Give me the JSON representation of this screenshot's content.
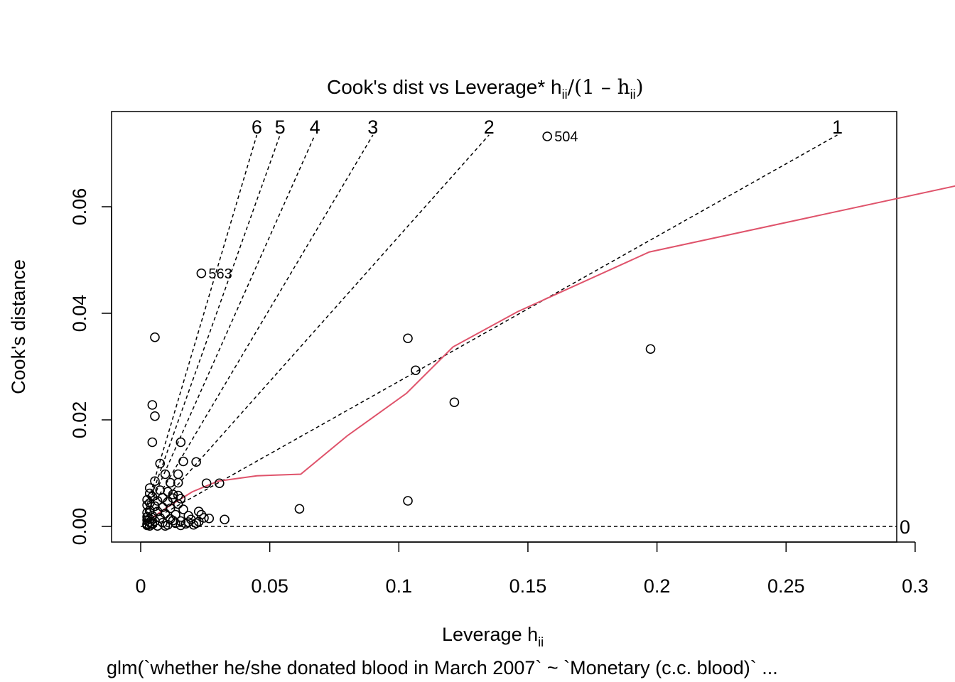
{
  "chart_data": {
    "type": "scatter",
    "title": "Cook's dist vs Leverage* h",
    "title_sub1": "ii",
    "title_mid": "/(1 – h",
    "title_sub2": "ii",
    "title_end": ")",
    "xlabel": "Leverage  h",
    "xlabel_sub": "ii",
    "ylabel": "Cook's distance",
    "footer": "glm(`whether he/she donated blood in March 2007` ~ `Monetary (c.c. blood)`  ...",
    "xlim": [
      0,
      0.33
    ],
    "ylim": [
      0,
      0.0735
    ],
    "x_ticks": [
      {
        "value": 0,
        "label": "0"
      },
      {
        "value": 0.05,
        "label": "0.05"
      },
      {
        "value": 0.1,
        "label": "0.1"
      },
      {
        "value": 0.15,
        "label": "0.15"
      },
      {
        "value": 0.2,
        "label": "0.2"
      },
      {
        "value": 0.25,
        "label": "0.25"
      },
      {
        "value": 0.3,
        "label": "0.3"
      }
    ],
    "y_ticks": [
      {
        "value": 0,
        "label": "0.00"
      },
      {
        "value": 0.02,
        "label": "0.02"
      },
      {
        "value": 0.04,
        "label": "0.04"
      },
      {
        "value": 0.06,
        "label": "0.06"
      }
    ],
    "reference_lines": [
      {
        "label": "6",
        "slope": 6
      },
      {
        "label": "5",
        "slope": 5
      },
      {
        "label": "4",
        "slope": 4
      },
      {
        "label": "3",
        "slope": 3
      },
      {
        "label": "2",
        "slope": 2
      },
      {
        "label": "1",
        "slope": 1
      },
      {
        "label": "0",
        "slope": 0
      }
    ],
    "smooth_color": "#DF536B",
    "smooth": [
      {
        "x": 0.002,
        "y": 0.0008
      },
      {
        "x": 0.01,
        "y": 0.0035
      },
      {
        "x": 0.02,
        "y": 0.0065
      },
      {
        "x": 0.03,
        "y": 0.0085
      },
      {
        "x": 0.045,
        "y": 0.0095
      },
      {
        "x": 0.062,
        "y": 0.0098
      },
      {
        "x": 0.08,
        "y": 0.017
      },
      {
        "x": 0.103,
        "y": 0.025
      },
      {
        "x": 0.121,
        "y": 0.0337
      },
      {
        "x": 0.146,
        "y": 0.0403
      },
      {
        "x": 0.197,
        "y": 0.0515
      },
      {
        "x": 0.329,
        "y": 0.0653
      }
    ],
    "labeled_points": [
      {
        "x": 0.1575,
        "y": 0.0732,
        "label": "504"
      },
      {
        "x": 0.0235,
        "y": 0.0475,
        "label": "563"
      },
      {
        "x": 0.3345,
        "y": 0.0645,
        "label": "1"
      }
    ],
    "points": [
      {
        "x": 0.0055,
        "y": 0.0355
      },
      {
        "x": 0.0045,
        "y": 0.0228
      },
      {
        "x": 0.0055,
        "y": 0.0207
      },
      {
        "x": 0.0045,
        "y": 0.0158
      },
      {
        "x": 0.0155,
        "y": 0.0158
      },
      {
        "x": 0.0165,
        "y": 0.0122
      },
      {
        "x": 0.0215,
        "y": 0.0121
      },
      {
        "x": 0.0075,
        "y": 0.0118
      },
      {
        "x": 0.0095,
        "y": 0.0098
      },
      {
        "x": 0.0145,
        "y": 0.0098
      },
      {
        "x": 0.0055,
        "y": 0.0085
      },
      {
        "x": 0.0115,
        "y": 0.0082
      },
      {
        "x": 0.0145,
        "y": 0.0082
      },
      {
        "x": 0.0255,
        "y": 0.0081
      },
      {
        "x": 0.0305,
        "y": 0.0081
      },
      {
        "x": 0.0035,
        "y": 0.0072
      },
      {
        "x": 0.0075,
        "y": 0.0068
      },
      {
        "x": 0.0105,
        "y": 0.0065
      },
      {
        "x": 0.0035,
        "y": 0.0062
      },
      {
        "x": 0.0125,
        "y": 0.006
      },
      {
        "x": 0.0145,
        "y": 0.0058
      },
      {
        "x": 0.0045,
        "y": 0.0056
      },
      {
        "x": 0.0085,
        "y": 0.0054
      },
      {
        "x": 0.0125,
        "y": 0.0053
      },
      {
        "x": 0.0155,
        "y": 0.0052
      },
      {
        "x": 0.0025,
        "y": 0.005
      },
      {
        "x": 0.0065,
        "y": 0.0048
      },
      {
        "x": 0.0105,
        "y": 0.0046
      },
      {
        "x": 0.0035,
        "y": 0.0044
      },
      {
        "x": 0.0145,
        "y": 0.0042
      },
      {
        "x": 0.0025,
        "y": 0.004
      },
      {
        "x": 0.0055,
        "y": 0.0038
      },
      {
        "x": 0.0085,
        "y": 0.0036
      },
      {
        "x": 0.0115,
        "y": 0.0034
      },
      {
        "x": 0.0165,
        "y": 0.0032
      },
      {
        "x": 0.0035,
        "y": 0.003
      },
      {
        "x": 0.0065,
        "y": 0.0028
      },
      {
        "x": 0.0225,
        "y": 0.0028
      },
      {
        "x": 0.0025,
        "y": 0.0026
      },
      {
        "x": 0.0095,
        "y": 0.0024
      },
      {
        "x": 0.0135,
        "y": 0.0022
      },
      {
        "x": 0.0045,
        "y": 0.002
      },
      {
        "x": 0.0185,
        "y": 0.002
      },
      {
        "x": 0.0025,
        "y": 0.0018
      },
      {
        "x": 0.0075,
        "y": 0.0016
      },
      {
        "x": 0.0245,
        "y": 0.0016
      },
      {
        "x": 0.0035,
        "y": 0.0014
      },
      {
        "x": 0.0115,
        "y": 0.0014
      },
      {
        "x": 0.0195,
        "y": 0.0013
      },
      {
        "x": 0.0025,
        "y": 0.0012
      },
      {
        "x": 0.0055,
        "y": 0.001
      },
      {
        "x": 0.0155,
        "y": 0.001
      },
      {
        "x": 0.0225,
        "y": 0.0009
      },
      {
        "x": 0.0035,
        "y": 0.0008
      },
      {
        "x": 0.0085,
        "y": 0.0007
      },
      {
        "x": 0.0135,
        "y": 0.0006
      },
      {
        "x": 0.0025,
        "y": 0.0005
      },
      {
        "x": 0.0175,
        "y": 0.0005
      },
      {
        "x": 0.0045,
        "y": 0.0004
      },
      {
        "x": 0.0105,
        "y": 0.0003
      },
      {
        "x": 0.0025,
        "y": 0.0002
      },
      {
        "x": 0.0065,
        "y": 0.0001
      },
      {
        "x": 0.0035,
        "y": 0.0001
      },
      {
        "x": 0.0155,
        "y": 0.0002
      },
      {
        "x": 0.0205,
        "y": 0.0003
      },
      {
        "x": 0.0095,
        "y": 0.0001
      },
      {
        "x": 0.0025,
        "y": 0.0003
      },
      {
        "x": 0.0045,
        "y": 0.0006
      },
      {
        "x": 0.0125,
        "y": 0.0011
      },
      {
        "x": 0.0235,
        "y": 0.0022
      },
      {
        "x": 0.0215,
        "y": 0.0006
      },
      {
        "x": 0.0185,
        "y": 0.0008
      },
      {
        "x": 0.0325,
        "y": 0.0013
      },
      {
        "x": 0.0265,
        "y": 0.0015
      },
      {
        "x": 0.0615,
        "y": 0.0033
      },
      {
        "x": 0.1035,
        "y": 0.0353
      },
      {
        "x": 0.1065,
        "y": 0.0293
      },
      {
        "x": 0.1215,
        "y": 0.0233
      },
      {
        "x": 0.1035,
        "y": 0.0048
      },
      {
        "x": 0.1975,
        "y": 0.0333
      }
    ]
  }
}
